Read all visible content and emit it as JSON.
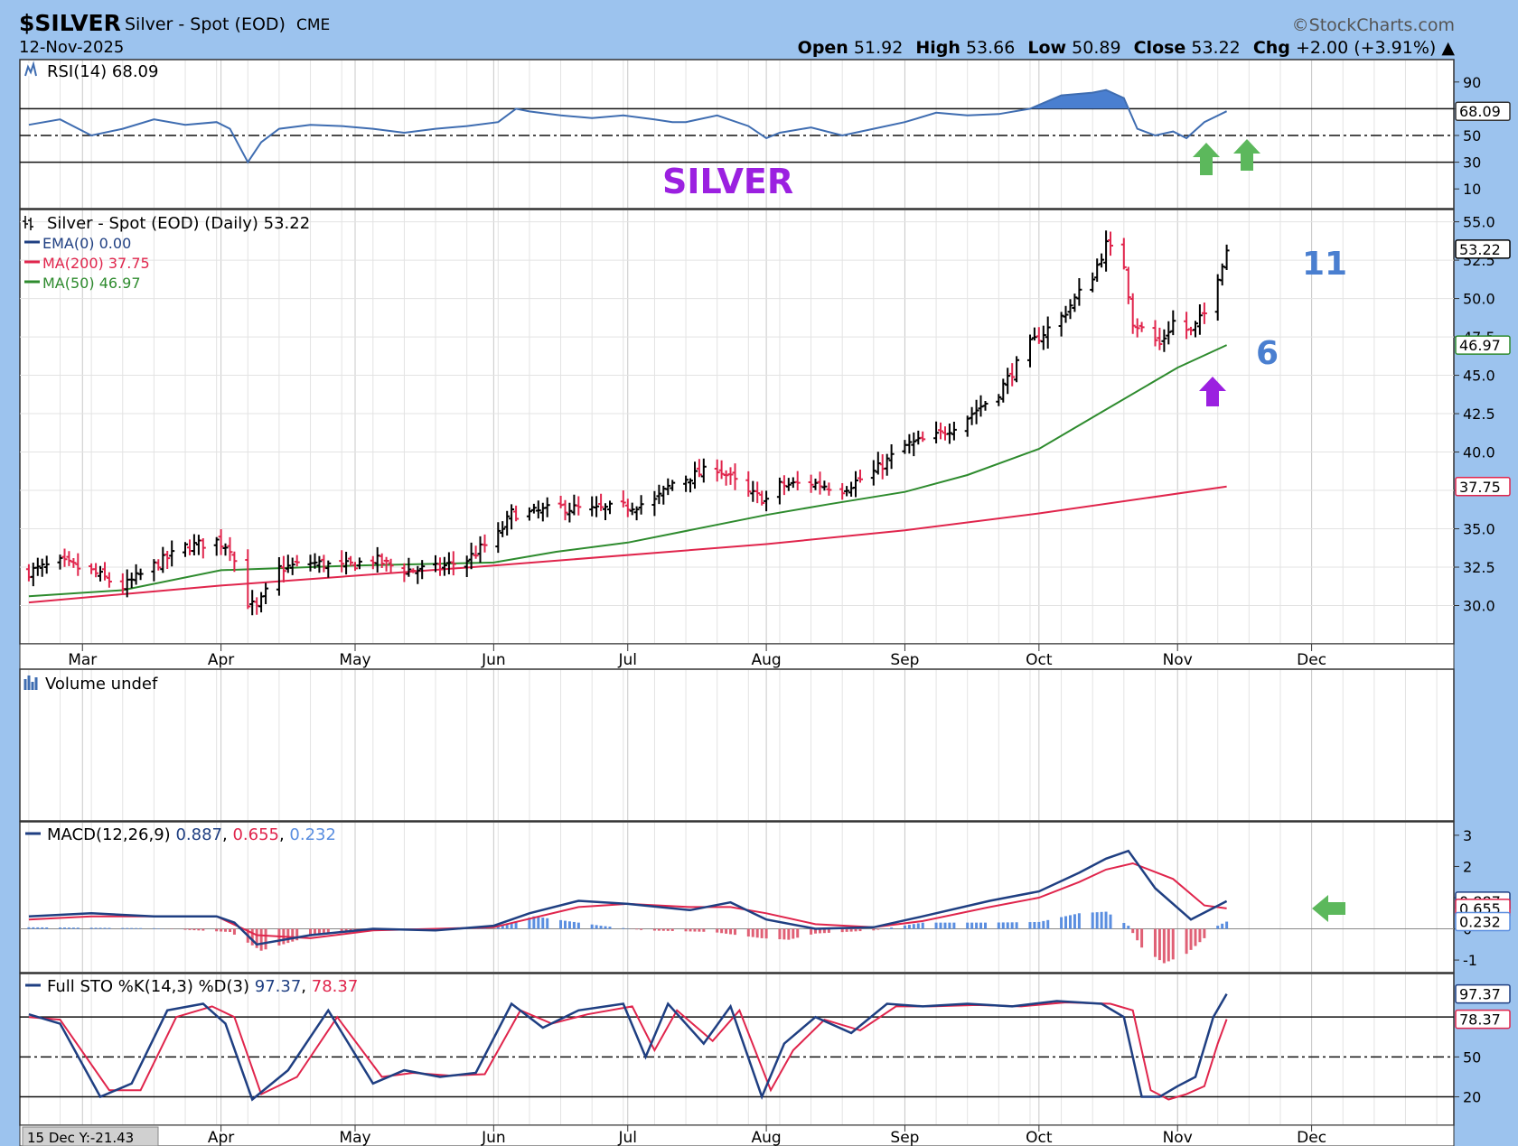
{
  "header": {
    "symbol": "$SILVER",
    "name": "Silver - Spot (EOD)",
    "exchange": "CME",
    "watermark": "©StockCharts.com",
    "date": "12-Nov-2025",
    "open_label": "Open",
    "open": "51.92",
    "high_label": "High",
    "high": "53.66",
    "low_label": "Low",
    "low": "50.89",
    "close_label": "Close",
    "close": "53.22",
    "chg_label": "Chg",
    "chg": "+2.00 (+3.91%)"
  },
  "footer": {
    "note": "15 Dec Y:-21.43"
  },
  "colors": {
    "background": "#9cc3ee",
    "panel": "#ffffff",
    "up_bar": "#000000",
    "down_bar": "#e0254c",
    "ma50": "#2e8b2e",
    "ma200": "#e0254c",
    "rsi_line": "#3f6db1",
    "rsi_fill": "#4a7fd0",
    "macd_line": "#1f3f82",
    "signal_line": "#e0254c",
    "hist_pos": "#5a8ee0",
    "hist_neg": "#e06075",
    "annot_purple": "#9b20e0",
    "annot_blue": "#4a7fd0",
    "annot_green": "#5cb85c"
  },
  "months": [
    "Mar",
    "Apr",
    "May",
    "Jun",
    "Jul",
    "Aug",
    "Sep",
    "Oct",
    "Nov",
    "Dec"
  ],
  "bottom_months": [
    "Apr",
    "May",
    "Jun",
    "Jul",
    "Aug",
    "Sep",
    "Oct",
    "Nov",
    "Dec"
  ],
  "chart_data": [
    {
      "type": "line",
      "panel": "rsi",
      "title": "RSI(14) 68.09",
      "series": [
        {
          "name": "RSI(14)",
          "last": 68.09,
          "x": [
            "2025-02-17",
            "2025-02-24",
            "2025-03-03",
            "2025-03-10",
            "2025-03-17",
            "2025-03-24",
            "2025-03-31",
            "2025-04-03",
            "2025-04-07",
            "2025-04-10",
            "2025-04-14",
            "2025-04-21",
            "2025-04-28",
            "2025-05-05",
            "2025-05-12",
            "2025-05-19",
            "2025-05-26",
            "2025-06-02",
            "2025-06-06",
            "2025-06-09",
            "2025-06-16",
            "2025-06-23",
            "2025-06-30",
            "2025-07-07",
            "2025-07-11",
            "2025-07-14",
            "2025-07-21",
            "2025-07-28",
            "2025-08-01",
            "2025-08-04",
            "2025-08-11",
            "2025-08-18",
            "2025-08-25",
            "2025-09-01",
            "2025-09-08",
            "2025-09-15",
            "2025-09-22",
            "2025-09-29",
            "2025-10-06",
            "2025-10-13",
            "2025-10-16",
            "2025-10-20",
            "2025-10-23",
            "2025-10-27",
            "2025-10-31",
            "2025-11-03",
            "2025-11-07",
            "2025-11-12"
          ],
          "values": [
            58,
            62,
            50,
            55,
            62,
            58,
            60,
            55,
            30,
            45,
            55,
            58,
            57,
            55,
            52,
            55,
            57,
            60,
            70,
            68,
            65,
            63,
            65,
            62,
            60,
            60,
            65,
            57,
            48,
            52,
            56,
            50,
            55,
            60,
            67,
            65,
            66,
            70,
            80,
            82,
            84,
            78,
            55,
            50,
            53,
            48,
            60,
            68.09
          ]
        }
      ],
      "ref_lines": [
        70,
        50,
        30
      ],
      "ticks": [
        "90",
        "70",
        "50",
        "30",
        "10"
      ],
      "last_label": "68.09",
      "ylim": [
        0,
        100
      ]
    },
    {
      "type": "ohlc",
      "panel": "price",
      "title": "Silver - Spot (EOD) (Daily) 53.22",
      "ylim": [
        27.5,
        55.8
      ],
      "y_ticks": [
        "30.0",
        "32.5",
        "35.0",
        "37.5",
        "40.0",
        "42.5",
        "45.0",
        "47.5",
        "50.0",
        "52.5",
        "55.0"
      ],
      "anchors": {
        "x": [
          "2025-02-17",
          "2025-02-24",
          "2025-03-03",
          "2025-03-10",
          "2025-03-17",
          "2025-03-24",
          "2025-03-31",
          "2025-04-03",
          "2025-04-07",
          "2025-04-09",
          "2025-04-14",
          "2025-04-21",
          "2025-04-28",
          "2025-05-05",
          "2025-05-12",
          "2025-05-19",
          "2025-05-26",
          "2025-06-02",
          "2025-06-05",
          "2025-06-09",
          "2025-06-16",
          "2025-06-23",
          "2025-06-30",
          "2025-07-07",
          "2025-07-11",
          "2025-07-14",
          "2025-07-21",
          "2025-07-28",
          "2025-08-01",
          "2025-08-04",
          "2025-08-11",
          "2025-08-18",
          "2025-08-25",
          "2025-09-01",
          "2025-09-08",
          "2025-09-15",
          "2025-09-22",
          "2025-09-29",
          "2025-10-06",
          "2025-10-13",
          "2025-10-16",
          "2025-10-20",
          "2025-10-22",
          "2025-10-28",
          "2025-10-31",
          "2025-11-04",
          "2025-11-07",
          "2025-11-12"
        ],
        "close": [
          32.2,
          32.8,
          32.2,
          31.2,
          32.6,
          33.8,
          34.2,
          33.8,
          30.2,
          29.8,
          32.4,
          32.8,
          32.5,
          33.0,
          32.3,
          32.4,
          33.0,
          34.6,
          36.0,
          36.0,
          36.4,
          36.2,
          36.4,
          36.8,
          38.0,
          38.3,
          39.0,
          37.3,
          36.9,
          37.8,
          38.0,
          37.6,
          38.7,
          40.4,
          41.0,
          42.3,
          43.9,
          47.0,
          48.8,
          51.5,
          53.5,
          52.2,
          48.5,
          47.0,
          48.5,
          47.8,
          49.0,
          53.22
        ]
      },
      "series": [
        {
          "name": "EMA(0)",
          "last": 0.0
        },
        {
          "name": "MA(200)",
          "last": 37.75,
          "x": [
            "2025-02-17",
            "2025-04-01",
            "2025-06-01",
            "2025-08-01",
            "2025-09-01",
            "2025-10-01",
            "2025-11-12"
          ],
          "values": [
            30.2,
            31.3,
            32.6,
            34.0,
            34.9,
            36.0,
            37.75
          ]
        },
        {
          "name": "MA(50)",
          "last": 46.97,
          "x": [
            "2025-02-17",
            "2025-03-10",
            "2025-04-01",
            "2025-05-01",
            "2025-06-01",
            "2025-06-15",
            "2025-07-01",
            "2025-08-01",
            "2025-08-15",
            "2025-09-01",
            "2025-09-15",
            "2025-10-01",
            "2025-10-15",
            "2025-11-01",
            "2025-11-12"
          ],
          "values": [
            30.6,
            31.0,
            32.3,
            32.6,
            32.8,
            33.5,
            34.1,
            35.9,
            36.6,
            37.4,
            38.5,
            40.2,
            42.6,
            45.5,
            46.97
          ]
        }
      ],
      "last_labels": [
        "53.22",
        "46.97",
        "37.75"
      ],
      "annotations": [
        "SILVER",
        "11",
        "6"
      ]
    },
    {
      "type": "bar",
      "panel": "volume",
      "title": "Volume undef"
    },
    {
      "type": "line",
      "panel": "macd",
      "title": "MACD(12,26,9)",
      "macd_value": "0.887",
      "signal_value": "0.655",
      "hist_value": "0.232",
      "ylim": [
        -1.2,
        3.2
      ],
      "y_ticks": [
        "3",
        "2",
        "1",
        "0",
        "-1"
      ],
      "last_labels": [
        "0.887",
        "0.655",
        "0.232"
      ],
      "series": [
        {
          "name": "MACD",
          "last": 0.887,
          "x": [
            "2025-02-17",
            "2025-03-03",
            "2025-03-17",
            "2025-03-31",
            "2025-04-04",
            "2025-04-09",
            "2025-04-21",
            "2025-05-05",
            "2025-05-19",
            "2025-06-01",
            "2025-06-09",
            "2025-06-20",
            "2025-07-01",
            "2025-07-15",
            "2025-07-24",
            "2025-08-01",
            "2025-08-12",
            "2025-08-25",
            "2025-09-05",
            "2025-09-20",
            "2025-10-01",
            "2025-10-10",
            "2025-10-16",
            "2025-10-21",
            "2025-10-27",
            "2025-11-04",
            "2025-11-12"
          ],
          "values": [
            0.4,
            0.5,
            0.4,
            0.4,
            0.2,
            -0.5,
            -0.2,
            0.0,
            -0.05,
            0.1,
            0.5,
            0.9,
            0.8,
            0.6,
            0.85,
            0.3,
            0.0,
            0.05,
            0.4,
            0.9,
            1.2,
            1.8,
            2.25,
            2.5,
            1.3,
            0.3,
            0.887
          ]
        },
        {
          "name": "Signal",
          "last": 0.655,
          "x": [
            "2025-02-17",
            "2025-03-03",
            "2025-03-17",
            "2025-03-31",
            "2025-04-09",
            "2025-04-21",
            "2025-05-05",
            "2025-05-19",
            "2025-06-01",
            "2025-06-20",
            "2025-07-01",
            "2025-07-15",
            "2025-07-24",
            "2025-08-01",
            "2025-08-12",
            "2025-08-25",
            "2025-09-05",
            "2025-09-20",
            "2025-10-01",
            "2025-10-10",
            "2025-10-16",
            "2025-10-22",
            "2025-10-31",
            "2025-11-07",
            "2025-11-12"
          ],
          "values": [
            0.3,
            0.4,
            0.4,
            0.4,
            -0.2,
            -0.3,
            -0.05,
            0.0,
            0.05,
            0.7,
            0.8,
            0.7,
            0.7,
            0.5,
            0.15,
            0.05,
            0.25,
            0.7,
            1.0,
            1.5,
            1.9,
            2.1,
            1.6,
            0.75,
            0.655
          ]
        },
        {
          "name": "Histogram",
          "last": 0.232,
          "x": [
            "2025-02-17",
            "2025-03-17",
            "2025-04-03",
            "2025-04-10",
            "2025-04-22",
            "2025-05-05",
            "2025-06-01",
            "2025-06-10",
            "2025-06-25",
            "2025-07-05",
            "2025-07-20",
            "2025-07-31",
            "2025-08-06",
            "2025-08-12",
            "2025-08-25",
            "2025-09-05",
            "2025-09-20",
            "2025-10-01",
            "2025-10-10",
            "2025-10-16",
            "2025-10-21",
            "2025-10-24",
            "2025-10-29",
            "2025-11-03",
            "2025-11-07",
            "2025-11-10",
            "2025-11-12"
          ],
          "values": [
            0.05,
            0.02,
            -0.1,
            -0.7,
            -0.2,
            -0.05,
            0.05,
            0.4,
            0.1,
            -0.05,
            -0.1,
            -0.3,
            -0.35,
            -0.15,
            -0.05,
            0.2,
            0.2,
            0.22,
            0.5,
            0.55,
            0.1,
            -0.6,
            -1.1,
            -0.8,
            -0.3,
            0.1,
            0.232
          ]
        }
      ]
    },
    {
      "type": "line",
      "panel": "stochastic",
      "title": "Full STO %K(14,3) %D(3)",
      "k_value": "97.37",
      "d_value": "78.37",
      "ylim": [
        0,
        110
      ],
      "ref_lines": [
        80,
        50,
        20
      ],
      "y_ticks": [
        "50",
        "20"
      ],
      "last_labels": [
        "97.37",
        "78.37"
      ],
      "series": [
        {
          "name": "%K",
          "last": 97.37,
          "x": [
            "2025-02-17",
            "2025-02-24",
            "2025-03-05",
            "2025-03-12",
            "2025-03-20",
            "2025-03-28",
            "2025-04-02",
            "2025-04-08",
            "2025-04-16",
            "2025-04-25",
            "2025-05-05",
            "2025-05-12",
            "2025-05-20",
            "2025-05-28",
            "2025-06-05",
            "2025-06-12",
            "2025-06-20",
            "2025-06-30",
            "2025-07-05",
            "2025-07-10",
            "2025-07-18",
            "2025-07-24",
            "2025-07-31",
            "2025-08-05",
            "2025-08-12",
            "2025-08-20",
            "2025-08-28",
            "2025-09-05",
            "2025-09-15",
            "2025-09-25",
            "2025-10-05",
            "2025-10-15",
            "2025-10-20",
            "2025-10-24",
            "2025-10-28",
            "2025-11-01",
            "2025-11-05",
            "2025-11-09",
            "2025-11-12"
          ],
          "values": [
            82,
            75,
            20,
            30,
            85,
            90,
            75,
            18,
            40,
            85,
            30,
            40,
            35,
            38,
            90,
            72,
            85,
            90,
            50,
            90,
            60,
            88,
            20,
            60,
            80,
            68,
            90,
            88,
            90,
            88,
            92,
            90,
            80,
            20,
            20,
            28,
            35,
            80,
            97.37
          ]
        },
        {
          "name": "%D",
          "last": 78.37,
          "x": [
            "2025-02-17",
            "2025-02-24",
            "2025-03-07",
            "2025-03-14",
            "2025-03-22",
            "2025-03-30",
            "2025-04-04",
            "2025-04-10",
            "2025-04-18",
            "2025-04-27",
            "2025-05-07",
            "2025-05-14",
            "2025-05-22",
            "2025-05-30",
            "2025-06-07",
            "2025-06-14",
            "2025-06-22",
            "2025-07-02",
            "2025-07-07",
            "2025-07-12",
            "2025-07-20",
            "2025-07-26",
            "2025-08-02",
            "2025-08-07",
            "2025-08-14",
            "2025-08-22",
            "2025-08-30",
            "2025-09-07",
            "2025-09-17",
            "2025-09-27",
            "2025-10-07",
            "2025-10-17",
            "2025-10-22",
            "2025-10-26",
            "2025-10-30",
            "2025-11-03",
            "2025-11-07",
            "2025-11-10",
            "2025-11-12"
          ],
          "values": [
            80,
            78,
            25,
            25,
            80,
            88,
            80,
            22,
            35,
            80,
            35,
            38,
            36,
            37,
            85,
            75,
            82,
            88,
            55,
            85,
            62,
            85,
            25,
            55,
            78,
            70,
            88,
            88,
            89,
            88,
            91,
            90,
            85,
            25,
            18,
            22,
            28,
            60,
            78.37
          ]
        }
      ]
    }
  ]
}
